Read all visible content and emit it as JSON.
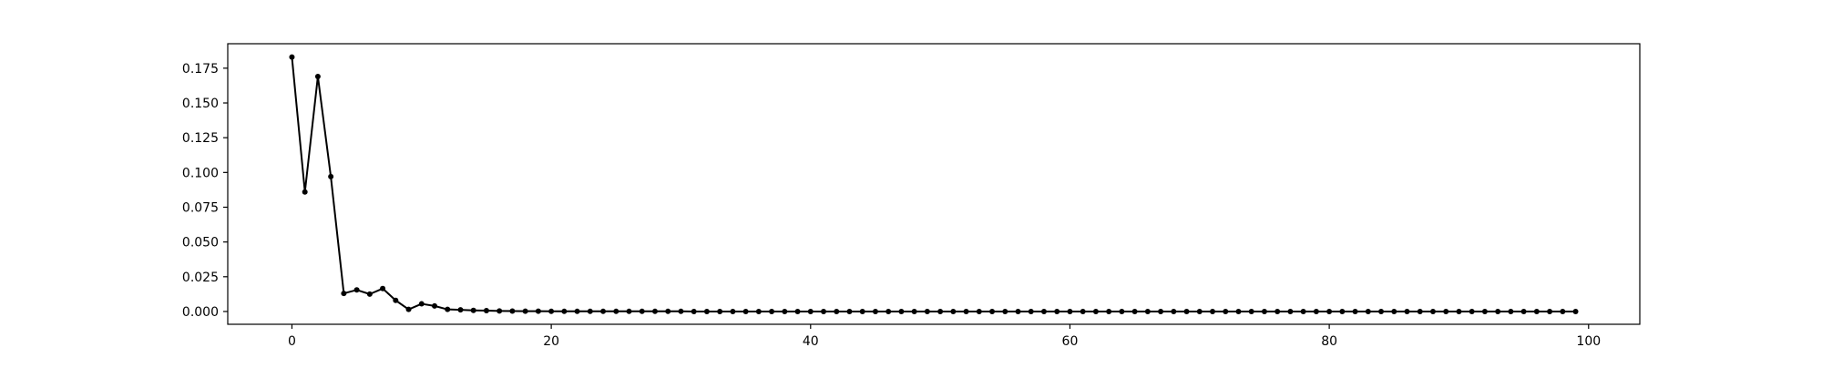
{
  "chart_data": {
    "type": "line",
    "title": "",
    "xlabel": "",
    "ylabel": "",
    "xlim": [
      -4.95,
      103.95
    ],
    "ylim": [
      -0.0092,
      0.1926
    ],
    "xticks": [
      0,
      20,
      40,
      60,
      80,
      100
    ],
    "yticks": [
      0.0,
      0.025,
      0.05,
      0.075,
      0.1,
      0.125,
      0.15,
      0.175
    ],
    "xtick_labels": [
      "0",
      "20",
      "40",
      "60",
      "80",
      "100"
    ],
    "ytick_labels": [
      "0.000",
      "0.025",
      "0.050",
      "0.075",
      "0.100",
      "0.125",
      "0.150",
      "0.175"
    ],
    "grid": false,
    "series": [
      {
        "color": "#000000",
        "marker": "circle",
        "x": [
          0,
          1,
          2,
          3,
          4,
          5,
          6,
          7,
          8,
          9,
          10,
          11,
          12,
          13,
          14,
          15,
          16,
          17,
          18,
          19,
          20,
          21,
          22,
          23,
          24,
          25,
          26,
          27,
          28,
          29,
          30,
          31,
          32,
          33,
          34,
          35,
          36,
          37,
          38,
          39,
          40,
          41,
          42,
          43,
          44,
          45,
          46,
          47,
          48,
          49,
          50,
          51,
          52,
          53,
          54,
          55,
          56,
          57,
          58,
          59,
          60,
          61,
          62,
          63,
          64,
          65,
          66,
          67,
          68,
          69,
          70,
          71,
          72,
          73,
          74,
          75,
          76,
          77,
          78,
          79,
          80,
          81,
          82,
          83,
          84,
          85,
          86,
          87,
          88,
          89,
          90,
          91,
          92,
          93,
          94,
          95,
          96,
          97,
          98,
          99
        ],
        "values": [
          0.183,
          0.086,
          0.169,
          0.097,
          0.013,
          0.0155,
          0.0125,
          0.0165,
          0.008,
          0.0015,
          0.0055,
          0.004,
          0.0015,
          0.0012,
          0.0008,
          0.0006,
          0.0004,
          0.0003,
          0.0002,
          0.0002,
          0.0001,
          0.0001,
          0.0001,
          0.0001,
          0.0001,
          0.0001,
          0.0001,
          0.0001,
          0.0001,
          0.0001,
          0.0001,
          0.0,
          0.0,
          0.0,
          0.0,
          0.0,
          0.0,
          0.0,
          0.0,
          0.0,
          0.0,
          0.0,
          0.0,
          0.0,
          0.0,
          0.0,
          0.0,
          0.0,
          0.0,
          0.0,
          0.0,
          0.0,
          0.0,
          0.0,
          0.0,
          0.0,
          0.0,
          0.0,
          0.0,
          0.0,
          0.0,
          0.0,
          0.0,
          0.0,
          0.0,
          0.0,
          0.0,
          0.0,
          0.0,
          0.0,
          0.0,
          0.0,
          0.0,
          0.0,
          0.0,
          0.0,
          0.0,
          0.0,
          0.0,
          0.0,
          0.0,
          0.0,
          0.0,
          0.0,
          0.0,
          0.0,
          0.0,
          0.0,
          0.0,
          0.0,
          0.0,
          0.0,
          0.0,
          0.0,
          0.0,
          0.0,
          0.0,
          0.0,
          0.0,
          0.0
        ]
      }
    ]
  }
}
